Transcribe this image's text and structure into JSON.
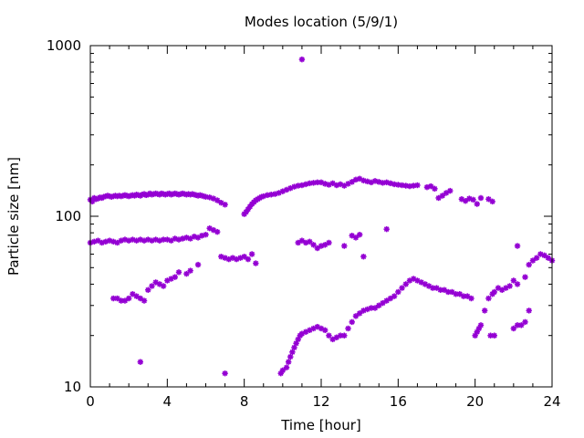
{
  "chart_data": {
    "type": "scatter",
    "title": "Modes location (5/9/1)",
    "xlabel": "Time [hour]",
    "ylabel": "Particle size [nm]",
    "xlim": [
      0,
      24
    ],
    "ylim": [
      10,
      1000
    ],
    "y_scale": "log",
    "x_ticks": [
      0,
      4,
      8,
      12,
      16,
      20,
      24
    ],
    "y_ticks": [
      10,
      100,
      1000
    ],
    "grid": false,
    "legend": "none",
    "marker_color": "#9400d3",
    "series": [
      {
        "points": [
          [
            0.0,
            125
          ],
          [
            0.1,
            122
          ],
          [
            0.2,
            128
          ],
          [
            0.3,
            126
          ],
          [
            0.4,
            127
          ],
          [
            0.5,
            129
          ],
          [
            0.6,
            128
          ],
          [
            0.7,
            130
          ],
          [
            0.8,
            131
          ],
          [
            0.9,
            132
          ],
          [
            1.0,
            131
          ],
          [
            1.1,
            130
          ],
          [
            1.2,
            131
          ],
          [
            1.3,
            132
          ],
          [
            1.4,
            131
          ],
          [
            1.5,
            132
          ],
          [
            1.6,
            131
          ],
          [
            1.7,
            132
          ],
          [
            1.8,
            133
          ],
          [
            1.9,
            132
          ],
          [
            2.0,
            131
          ],
          [
            2.1,
            132
          ],
          [
            2.2,
            133
          ],
          [
            2.3,
            132
          ],
          [
            2.4,
            134
          ],
          [
            2.5,
            133
          ],
          [
            2.6,
            132
          ],
          [
            2.7,
            134
          ],
          [
            2.8,
            135
          ],
          [
            2.9,
            133
          ],
          [
            3.0,
            134
          ],
          [
            3.1,
            136
          ],
          [
            3.2,
            134
          ],
          [
            3.3,
            135
          ],
          [
            3.4,
            136
          ],
          [
            3.5,
            135
          ],
          [
            3.6,
            134
          ],
          [
            3.7,
            136
          ],
          [
            3.8,
            135
          ],
          [
            3.9,
            134
          ],
          [
            4.0,
            135
          ],
          [
            4.1,
            136
          ],
          [
            4.2,
            134
          ],
          [
            4.3,
            135
          ],
          [
            4.4,
            136
          ],
          [
            4.5,
            135
          ],
          [
            4.6,
            134
          ],
          [
            4.7,
            135
          ],
          [
            4.8,
            136
          ],
          [
            4.9,
            135
          ],
          [
            5.0,
            134
          ],
          [
            5.1,
            135
          ],
          [
            5.2,
            134
          ],
          [
            5.3,
            135
          ],
          [
            5.4,
            134
          ],
          [
            5.5,
            133
          ],
          [
            5.6,
            132
          ],
          [
            5.7,
            133
          ],
          [
            5.8,
            132
          ],
          [
            5.9,
            131
          ],
          [
            6.0,
            130
          ],
          [
            6.2,
            129
          ],
          [
            6.4,
            127
          ],
          [
            6.6,
            124
          ],
          [
            6.8,
            120
          ],
          [
            7.0,
            117
          ],
          [
            8.0,
            103
          ],
          [
            8.1,
            106
          ],
          [
            8.2,
            110
          ],
          [
            8.3,
            114
          ],
          [
            8.4,
            118
          ],
          [
            8.5,
            121
          ],
          [
            8.6,
            124
          ],
          [
            8.7,
            126
          ],
          [
            8.8,
            128
          ],
          [
            8.9,
            130
          ],
          [
            9.0,
            131
          ],
          [
            9.2,
            133
          ],
          [
            9.4,
            134
          ],
          [
            9.6,
            135
          ],
          [
            9.8,
            137
          ],
          [
            10.0,
            140
          ],
          [
            10.2,
            143
          ],
          [
            10.4,
            146
          ],
          [
            10.6,
            149
          ],
          [
            10.8,
            151
          ],
          [
            11.0,
            152
          ],
          [
            11.2,
            154
          ],
          [
            11.4,
            156
          ],
          [
            11.6,
            157
          ],
          [
            11.8,
            158
          ],
          [
            12.0,
            158
          ],
          [
            12.2,
            155
          ],
          [
            12.4,
            153
          ],
          [
            12.6,
            156
          ],
          [
            12.8,
            152
          ],
          [
            13.0,
            154
          ],
          [
            13.2,
            151
          ],
          [
            13.4,
            155
          ],
          [
            13.6,
            159
          ],
          [
            13.8,
            164
          ],
          [
            14.0,
            166
          ],
          [
            14.2,
            162
          ],
          [
            14.4,
            160
          ],
          [
            14.6,
            158
          ],
          [
            14.8,
            161
          ],
          [
            15.0,
            159
          ],
          [
            15.2,
            157
          ],
          [
            15.4,
            158
          ],
          [
            15.6,
            156
          ],
          [
            15.8,
            154
          ],
          [
            16.0,
            153
          ],
          [
            16.2,
            152
          ],
          [
            16.4,
            151
          ],
          [
            16.6,
            150
          ],
          [
            16.8,
            151
          ],
          [
            17.0,
            152
          ],
          [
            17.5,
            148
          ],
          [
            17.7,
            150
          ],
          [
            17.9,
            145
          ],
          [
            18.1,
            128
          ],
          [
            18.3,
            132
          ],
          [
            18.5,
            137
          ],
          [
            18.7,
            141
          ],
          [
            19.3,
            126
          ],
          [
            19.5,
            123
          ],
          [
            19.7,
            127
          ],
          [
            19.9,
            125
          ],
          [
            20.1,
            118
          ],
          [
            20.3,
            128
          ],
          [
            20.7,
            126
          ],
          [
            20.9,
            122
          ],
          [
            0.0,
            70
          ],
          [
            0.2,
            71
          ],
          [
            0.4,
            72
          ],
          [
            0.6,
            70
          ],
          [
            0.8,
            71
          ],
          [
            1.0,
            72
          ],
          [
            1.2,
            71
          ],
          [
            1.4,
            70
          ],
          [
            1.6,
            72
          ],
          [
            1.8,
            73
          ],
          [
            2.0,
            72
          ],
          [
            2.2,
            73
          ],
          [
            2.4,
            72
          ],
          [
            2.6,
            73
          ],
          [
            2.8,
            72
          ],
          [
            3.0,
            73
          ],
          [
            3.2,
            72
          ],
          [
            3.4,
            73
          ],
          [
            3.6,
            72
          ],
          [
            3.8,
            73
          ],
          [
            4.0,
            73
          ],
          [
            4.2,
            72
          ],
          [
            4.4,
            74
          ],
          [
            4.6,
            73
          ],
          [
            4.8,
            74
          ],
          [
            5.0,
            75
          ],
          [
            5.2,
            74
          ],
          [
            5.4,
            76
          ],
          [
            5.6,
            75
          ],
          [
            5.8,
            77
          ],
          [
            6.0,
            78
          ],
          [
            6.2,
            85
          ],
          [
            6.4,
            83
          ],
          [
            6.6,
            81
          ],
          [
            10.8,
            70
          ],
          [
            11.0,
            72
          ],
          [
            11.2,
            70
          ],
          [
            11.4,
            71
          ],
          [
            11.6,
            68
          ],
          [
            11.8,
            65
          ],
          [
            12.0,
            67
          ],
          [
            12.2,
            68
          ],
          [
            12.4,
            70
          ],
          [
            13.2,
            67
          ],
          [
            13.6,
            77
          ],
          [
            13.8,
            75
          ],
          [
            14.0,
            78
          ],
          [
            15.4,
            84
          ],
          [
            6.8,
            58
          ],
          [
            7.0,
            57
          ],
          [
            7.2,
            56
          ],
          [
            7.4,
            57
          ],
          [
            7.6,
            56
          ],
          [
            7.8,
            57
          ],
          [
            8.0,
            58
          ],
          [
            8.2,
            56
          ],
          [
            8.4,
            60
          ],
          [
            8.6,
            53
          ],
          [
            14.2,
            58
          ],
          [
            1.2,
            33
          ],
          [
            1.4,
            33
          ],
          [
            1.6,
            32
          ],
          [
            1.8,
            32
          ],
          [
            2.0,
            33
          ],
          [
            2.2,
            35
          ],
          [
            2.4,
            34
          ],
          [
            2.6,
            33
          ],
          [
            2.8,
            32
          ],
          [
            3.0,
            37
          ],
          [
            3.2,
            39
          ],
          [
            3.4,
            41
          ],
          [
            3.6,
            40
          ],
          [
            3.8,
            39
          ],
          [
            4.0,
            42
          ],
          [
            4.2,
            43
          ],
          [
            4.4,
            44
          ],
          [
            4.6,
            47
          ],
          [
            5.0,
            46
          ],
          [
            5.2,
            48
          ],
          [
            5.6,
            52
          ],
          [
            2.6,
            14
          ],
          [
            7.0,
            12
          ],
          [
            9.9,
            12
          ],
          [
            10.0,
            12.5
          ],
          [
            10.2,
            13
          ],
          [
            10.3,
            14
          ],
          [
            10.4,
            15
          ],
          [
            10.5,
            16
          ],
          [
            10.6,
            17
          ],
          [
            10.7,
            18
          ],
          [
            10.8,
            19
          ],
          [
            10.9,
            20
          ],
          [
            11.0,
            20.5
          ],
          [
            11.2,
            21
          ],
          [
            11.4,
            21.5
          ],
          [
            11.6,
            22
          ],
          [
            11.8,
            22.5
          ],
          [
            12.0,
            22
          ],
          [
            12.2,
            21.5
          ],
          [
            12.4,
            20
          ],
          [
            12.6,
            19
          ],
          [
            12.8,
            19.5
          ],
          [
            13.0,
            20
          ],
          [
            13.2,
            20
          ],
          [
            13.4,
            22
          ],
          [
            13.6,
            24
          ],
          [
            13.8,
            26
          ],
          [
            14.0,
            27
          ],
          [
            14.2,
            28
          ],
          [
            14.4,
            28.5
          ],
          [
            14.6,
            29
          ],
          [
            14.8,
            29
          ],
          [
            15.0,
            30
          ],
          [
            15.2,
            31
          ],
          [
            15.4,
            32
          ],
          [
            15.6,
            33
          ],
          [
            15.8,
            34
          ],
          [
            16.0,
            36
          ],
          [
            16.2,
            38
          ],
          [
            16.4,
            40
          ],
          [
            16.6,
            42
          ],
          [
            16.8,
            43
          ],
          [
            17.0,
            42
          ],
          [
            17.2,
            41
          ],
          [
            17.4,
            40
          ],
          [
            17.6,
            39
          ],
          [
            17.8,
            38
          ],
          [
            18.0,
            38
          ],
          [
            18.2,
            37
          ],
          [
            18.4,
            37
          ],
          [
            18.6,
            36
          ],
          [
            18.8,
            36
          ],
          [
            19.0,
            35
          ],
          [
            19.2,
            35
          ],
          [
            19.4,
            34
          ],
          [
            19.6,
            34
          ],
          [
            19.8,
            33
          ],
          [
            20.0,
            20
          ],
          [
            20.1,
            21
          ],
          [
            20.2,
            22
          ],
          [
            20.3,
            23
          ],
          [
            20.5,
            28
          ],
          [
            20.7,
            33
          ],
          [
            20.9,
            35
          ],
          [
            21.0,
            36
          ],
          [
            21.2,
            38
          ],
          [
            21.4,
            37
          ],
          [
            21.6,
            38
          ],
          [
            21.8,
            39
          ],
          [
            22.0,
            42
          ],
          [
            22.2,
            40
          ],
          [
            20.8,
            20
          ],
          [
            21.0,
            20
          ],
          [
            22.0,
            22
          ],
          [
            22.2,
            23
          ],
          [
            22.4,
            23
          ],
          [
            22.6,
            24
          ],
          [
            22.8,
            28
          ],
          [
            22.6,
            44
          ],
          [
            22.8,
            52
          ],
          [
            23.0,
            55
          ],
          [
            23.2,
            57
          ],
          [
            23.4,
            60
          ],
          [
            23.6,
            59
          ],
          [
            23.8,
            57
          ],
          [
            24.0,
            55
          ],
          [
            22.2,
            67
          ],
          [
            11.0,
            830
          ]
        ]
      }
    ]
  }
}
